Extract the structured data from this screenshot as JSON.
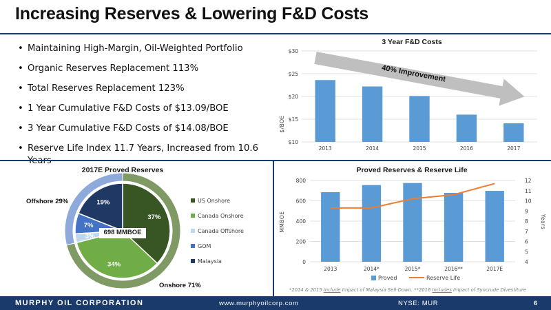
{
  "page": {
    "title": "Increasing Reserves & Lowering F&D Costs"
  },
  "bullets": [
    "Maintaining High-Margin, Oil-Weighted Portfolio",
    "Organic Reserves Replacement 113%",
    "Total Reserves Replacement 123%",
    "1 Year Cumulative F&D Costs of $13.09/BOE",
    "3 Year Cumulative F&D Costs of $14.08/BOE",
    "Reserve Life Index 11.7 Years, Increased from 10.6 Years"
  ],
  "colors": {
    "navy": "#1a3a6b",
    "bar_blue": "#5b9bd5",
    "line_orange": "#ed7d31",
    "us_onshore": "#375623",
    "canada_onshore": "#70ad47",
    "canada_offshore": "#bdd7ee",
    "gom": "#4472c4",
    "malaysia": "#1f3864",
    "onshore_ring": "#7f9a65",
    "offshore_ring": "#8eaadb"
  },
  "chart_data": [
    {
      "type": "bar",
      "title": "3 Year F&D Costs",
      "ylabel": "$/BOE",
      "categories": [
        "2013",
        "2014",
        "2015",
        "2016",
        "2017"
      ],
      "values": [
        23.6,
        22.2,
        20.1,
        16.0,
        14.1
      ],
      "ylim": [
        10,
        30
      ],
      "yticks": [
        10,
        15,
        20,
        25,
        30
      ],
      "ytick_labels": [
        "$10",
        "$15",
        "$20",
        "$25",
        "$30"
      ],
      "grid": true,
      "annotation": "40% Improvement"
    },
    {
      "type": "pie",
      "title": "2017E Proved Reserves",
      "center_label": "698 MMBOE",
      "slices": [
        {
          "name": "US Onshore",
          "value": 37,
          "label": "37%"
        },
        {
          "name": "Canada Onshore",
          "value": 34,
          "label": "34%"
        },
        {
          "name": "Canada Offshore",
          "value": 3,
          "label": "3%"
        },
        {
          "name": "GOM",
          "value": 7,
          "label": "7%"
        },
        {
          "name": "Malaysia",
          "value": 19,
          "label": "19%"
        }
      ],
      "outer_ring": [
        {
          "name": "Onshore",
          "value": 71,
          "label": "Onshore 71%"
        },
        {
          "name": "Offshore",
          "value": 29,
          "label": "Offshore 29%"
        }
      ],
      "legend_position": "right"
    },
    {
      "type": "bar",
      "title": "Proved Reserves & Reserve Life",
      "categories": [
        "2013",
        "2014*",
        "2015*",
        "2016**",
        "2017E"
      ],
      "series": [
        {
          "name": "Proved",
          "type": "bar",
          "axis": "left",
          "values": [
            685,
            755,
            775,
            678,
            698
          ]
        },
        {
          "name": "Reserve Life",
          "type": "line",
          "axis": "right",
          "values": [
            9.3,
            9.3,
            10.2,
            10.6,
            11.7
          ]
        }
      ],
      "ylabel": "MMBOE",
      "ylim": [
        0,
        800
      ],
      "yticks": [
        0,
        200,
        400,
        600,
        800
      ],
      "ylabel_right": "Years",
      "ylim_right": [
        4,
        12
      ],
      "yticks_right": [
        4,
        5,
        6,
        7,
        8,
        9,
        10,
        11,
        12
      ],
      "legend_position": "bottom",
      "grid": true
    }
  ],
  "footnote": {
    "part1": "*2014 & 2015 ",
    "link1": "Include",
    "part2": " Impact of Malaysia Sell-Down. **2016 ",
    "link2": "Includes",
    "part3": " Impact of Syncrude Divestiture"
  },
  "footer": {
    "company": "MURPHY OIL CORPORATION",
    "url": "www.murphyoilcorp.com",
    "ticker": "NYSE: MUR",
    "page_number": "6"
  }
}
